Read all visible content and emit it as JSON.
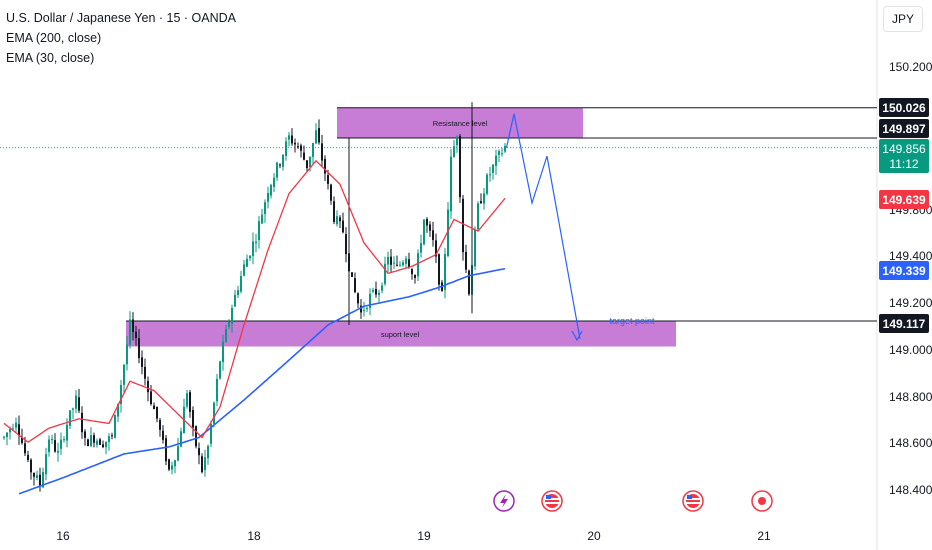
{
  "header": {
    "symbol_title": "U.S. Dollar / Japanese Yen · 15 · OANDA",
    "indicator_1": "EMA (200, close)",
    "indicator_2": "EMA (30, close)",
    "currency": "JPY"
  },
  "colors": {
    "up": "#089981",
    "down": "#131722",
    "ema200": "#2962ff",
    "ema30": "#f23645",
    "zone": "#c77dd6",
    "projection": "#2962ff",
    "current_price": "#089981",
    "ema30_tag": "#f23645",
    "ema200_tag": "#2962ff",
    "level_tag": "#131722"
  },
  "chart_data": {
    "type": "candlestick",
    "y_ticks": [
      "150.200",
      "149.800",
      "149.400",
      "149.200",
      "149.000",
      "148.800",
      "148.600",
      "148.400"
    ],
    "x_ticks": [
      "16",
      "18",
      "19",
      "20",
      "21"
    ],
    "ylim": [
      148.33,
      150.52
    ],
    "annotations": {
      "resistance_label": "Resistance level",
      "support_label": "suport level",
      "target_label": "target point"
    },
    "price_tags": [
      {
        "value": "150.026",
        "role": "resistance-top"
      },
      {
        "value": "149.897",
        "role": "resistance-bottom"
      },
      {
        "value": "149.856",
        "role": "current-price"
      },
      {
        "value": "11:12",
        "role": "countdown"
      },
      {
        "value": "149.639",
        "role": "ema30"
      },
      {
        "value": "149.339",
        "role": "ema200"
      },
      {
        "value": "149.117",
        "role": "support-top"
      }
    ],
    "zones": [
      {
        "name": "resistance",
        "top": 150.026,
        "bottom": 149.897
      },
      {
        "name": "support",
        "top": 149.117,
        "bottom": 149.008
      }
    ],
    "current_price": 149.856,
    "candle_anchors": [
      [
        0,
        148.62
      ],
      [
        4,
        148.7
      ],
      [
        8,
        148.5
      ],
      [
        12,
        148.42
      ],
      [
        15,
        148.62
      ],
      [
        18,
        148.55
      ],
      [
        21,
        148.68
      ],
      [
        24,
        148.78
      ],
      [
        27,
        148.6
      ],
      [
        30,
        148.62
      ],
      [
        33,
        148.6
      ],
      [
        36,
        148.62
      ],
      [
        39,
        148.85
      ],
      [
        42,
        149.1
      ],
      [
        45,
        148.98
      ],
      [
        48,
        148.82
      ],
      [
        51,
        148.7
      ],
      [
        55,
        148.48
      ],
      [
        58,
        148.58
      ],
      [
        61,
        148.82
      ],
      [
        63,
        148.64
      ],
      [
        66,
        148.48
      ],
      [
        68,
        148.58
      ],
      [
        72,
        148.95
      ],
      [
        76,
        149.18
      ],
      [
        80,
        149.35
      ],
      [
        84,
        149.48
      ],
      [
        88,
        149.68
      ],
      [
        92,
        149.8
      ],
      [
        95,
        149.9
      ],
      [
        98,
        149.86
      ],
      [
        101,
        149.78
      ],
      [
        104,
        149.92
      ],
      [
        107,
        149.75
      ],
      [
        110,
        149.56
      ],
      [
        113,
        149.5
      ],
      [
        116,
        149.28
      ],
      [
        119,
        149.15
      ],
      [
        122,
        149.22
      ],
      [
        125,
        149.25
      ],
      [
        128,
        149.38
      ],
      [
        131,
        149.34
      ],
      [
        134,
        149.4
      ],
      [
        137,
        149.3
      ],
      [
        140,
        149.55
      ],
      [
        143,
        149.45
      ],
      [
        146,
        149.22
      ],
      [
        149,
        149.8
      ],
      [
        151,
        149.92
      ],
      [
        153,
        149.42
      ],
      [
        155,
        149.25
      ],
      [
        158,
        149.6
      ],
      [
        161,
        149.72
      ],
      [
        164,
        149.8
      ],
      [
        167,
        149.86
      ]
    ],
    "ema200_anchors": [
      [
        5,
        148.38
      ],
      [
        20,
        148.45
      ],
      [
        40,
        148.55
      ],
      [
        55,
        148.58
      ],
      [
        65,
        148.62
      ],
      [
        80,
        148.78
      ],
      [
        95,
        148.95
      ],
      [
        108,
        149.1
      ],
      [
        120,
        149.18
      ],
      [
        135,
        149.22
      ],
      [
        145,
        149.26
      ],
      [
        155,
        149.31
      ],
      [
        167,
        149.34
      ]
    ],
    "ema30_anchors": [
      [
        0,
        148.68
      ],
      [
        8,
        148.6
      ],
      [
        15,
        148.66
      ],
      [
        25,
        148.7
      ],
      [
        35,
        148.68
      ],
      [
        42,
        148.86
      ],
      [
        50,
        148.82
      ],
      [
        58,
        148.72
      ],
      [
        66,
        148.62
      ],
      [
        72,
        148.75
      ],
      [
        80,
        149.1
      ],
      [
        88,
        149.42
      ],
      [
        95,
        149.66
      ],
      [
        104,
        149.8
      ],
      [
        112,
        149.7
      ],
      [
        120,
        149.45
      ],
      [
        128,
        149.32
      ],
      [
        136,
        149.35
      ],
      [
        144,
        149.4
      ],
      [
        150,
        149.55
      ],
      [
        158,
        149.5
      ],
      [
        167,
        149.64
      ]
    ],
    "projection_path": [
      [
        167.5,
        149.856
      ],
      [
        170.0,
        150.0
      ],
      [
        176.0,
        149.62
      ],
      [
        181.0,
        149.82
      ],
      [
        192.0,
        149.04
      ]
    ],
    "vertical_lines": [
      {
        "i": 115,
        "from": 149.9,
        "to": 149.1
      },
      {
        "i": 156,
        "from": 150.05,
        "to": 149.15
      }
    ],
    "event_icons": [
      "lightning-icon",
      "us-flag-icon",
      "us-flag-icon",
      "target-event-icon"
    ]
  }
}
